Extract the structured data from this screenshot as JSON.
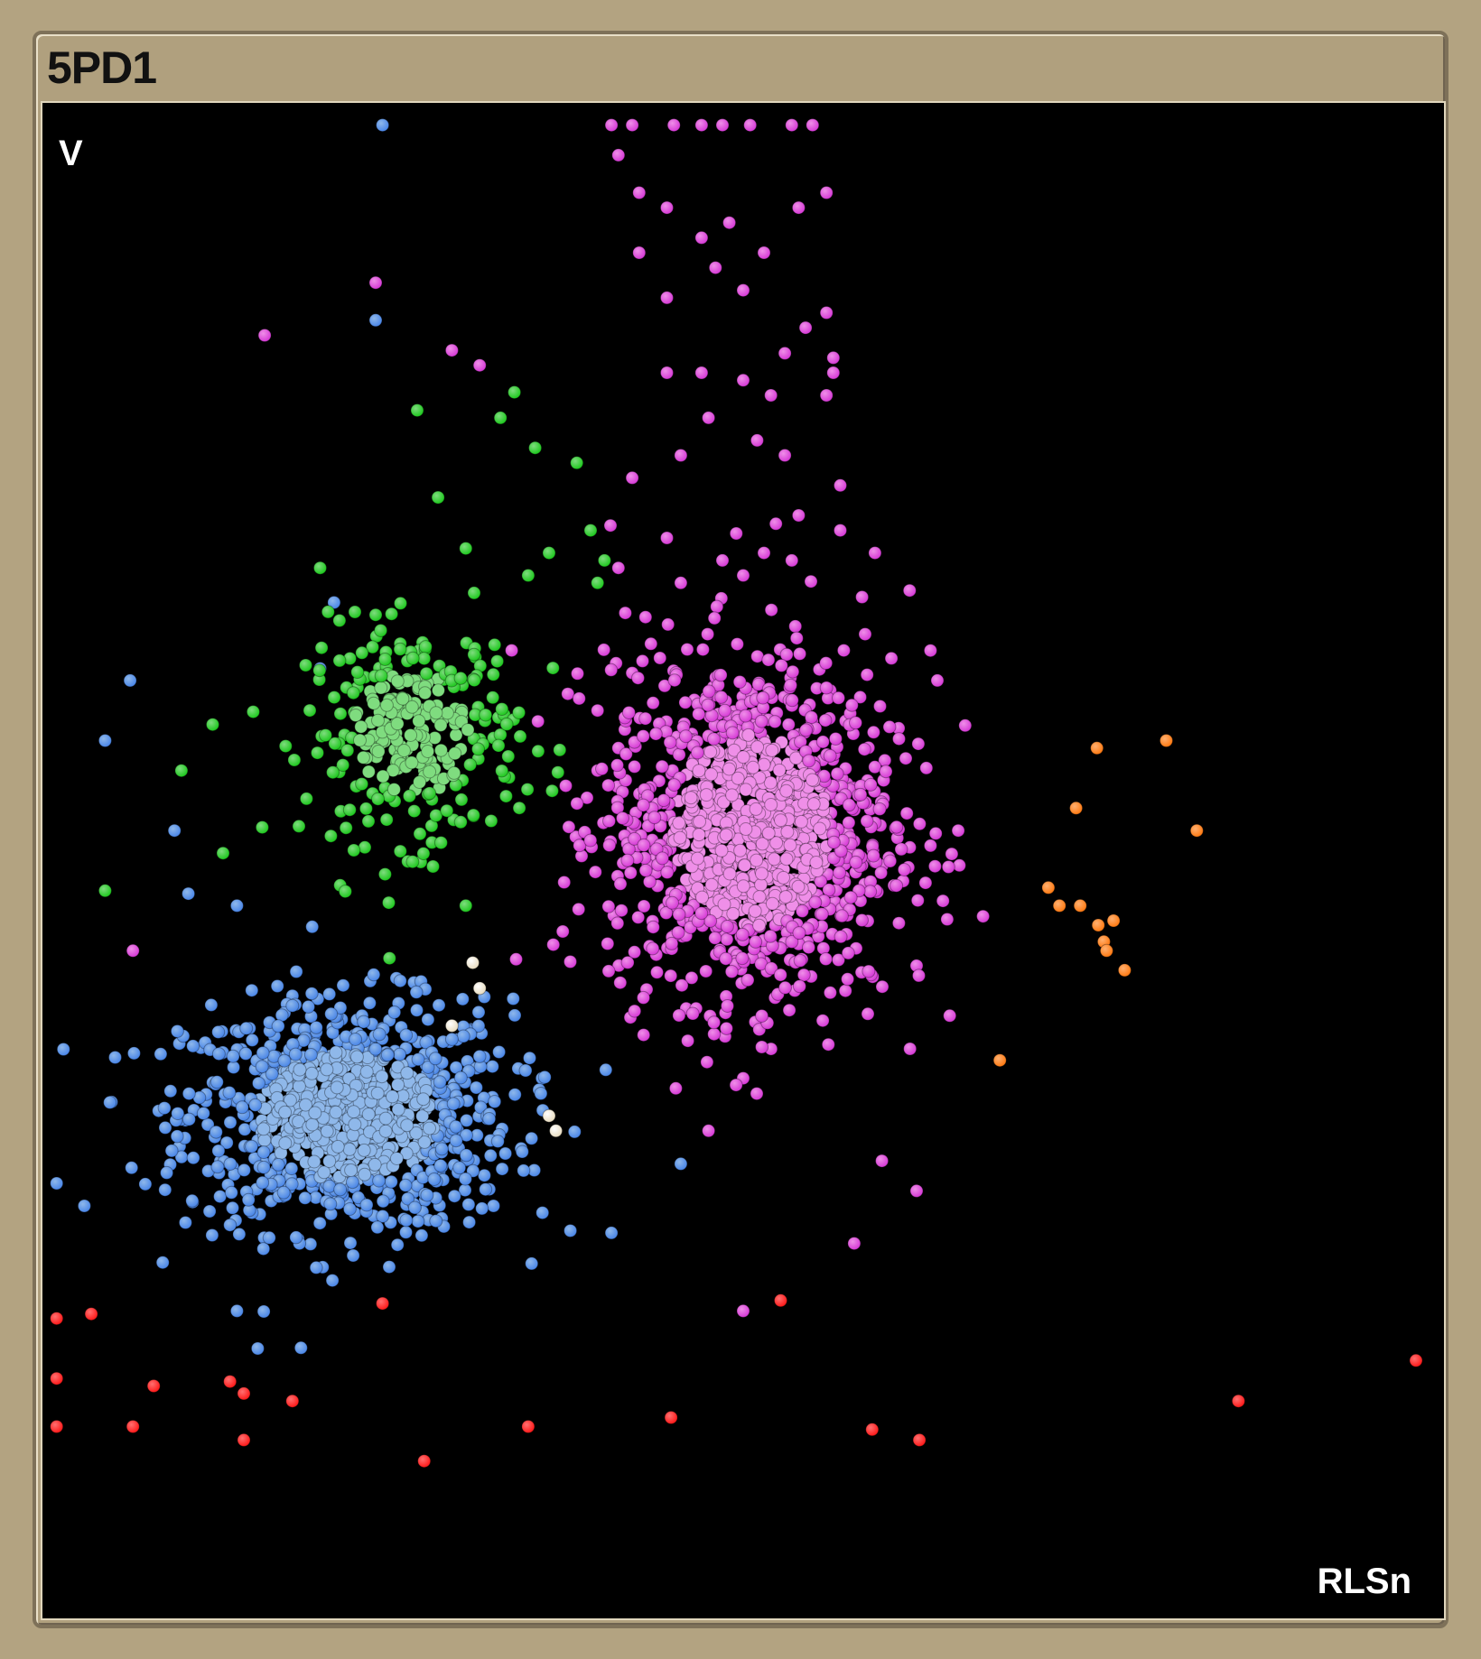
{
  "window": {
    "title": "5PD1"
  },
  "chart_data": {
    "type": "scatter",
    "title": "5PD1",
    "xlabel": "RLSn",
    "ylabel": "V",
    "xlim": [
      0,
      1000
    ],
    "ylim": [
      0,
      1000
    ],
    "grid": false,
    "legend": "none",
    "series": [
      {
        "color": "#4a86e8",
        "highlight": "#8fb8ea",
        "cluster": {
          "cx": 215,
          "cy": 330,
          "sx": 95,
          "sy": 62,
          "n": 950
        },
        "values": [
          [
            240,
            990
          ],
          [
            235,
            860
          ],
          [
            205,
            672
          ],
          [
            195,
            628
          ],
          [
            135,
            470
          ],
          [
            100,
            478
          ],
          [
            58,
            620
          ],
          [
            5,
            285
          ],
          [
            25,
            270
          ],
          [
            135,
            200
          ],
          [
            150,
            175
          ],
          [
            40,
            580
          ],
          [
            90,
            520
          ],
          [
            175,
            410
          ],
          [
            455,
            298
          ],
          [
            405,
            252
          ],
          [
            355,
            355
          ],
          [
            320,
            270
          ]
        ]
      },
      {
        "color": "#1ec81e",
        "highlight": "#7fdc7f",
        "cluster": {
          "cx": 262,
          "cy": 585,
          "sx": 62,
          "sy": 58,
          "n": 300
        },
        "values": [
          [
            265,
            800
          ],
          [
            335,
            812
          ],
          [
            325,
            795
          ],
          [
            350,
            775
          ],
          [
            380,
            765
          ],
          [
            195,
            695
          ],
          [
            95,
            560
          ],
          [
            40,
            480
          ],
          [
            280,
            742
          ],
          [
            300,
            708
          ],
          [
            360,
            705
          ],
          [
            345,
            690
          ],
          [
            395,
            685
          ],
          [
            390,
            720
          ],
          [
            400,
            700
          ],
          [
            125,
            505
          ],
          [
            300,
            470
          ],
          [
            245,
            435
          ]
        ]
      },
      {
        "color": "#d63ad6",
        "highlight": "#ef8fe8",
        "cluster": {
          "cx": 505,
          "cy": 520,
          "sx": 82,
          "sy": 92,
          "n": 1200
        },
        "values": [
          [
            405,
            990
          ],
          [
            420,
            990
          ],
          [
            450,
            990
          ],
          [
            470,
            990
          ],
          [
            485,
            990
          ],
          [
            505,
            990
          ],
          [
            535,
            990
          ],
          [
            550,
            990
          ],
          [
            410,
            970
          ],
          [
            425,
            945
          ],
          [
            445,
            935
          ],
          [
            470,
            915
          ],
          [
            490,
            925
          ],
          [
            515,
            905
          ],
          [
            540,
            935
          ],
          [
            560,
            945
          ],
          [
            425,
            905
          ],
          [
            480,
            895
          ],
          [
            500,
            880
          ],
          [
            445,
            875
          ],
          [
            560,
            865
          ],
          [
            545,
            855
          ],
          [
            530,
            838
          ],
          [
            565,
            825
          ],
          [
            565,
            835
          ],
          [
            445,
            825
          ],
          [
            470,
            825
          ],
          [
            500,
            820
          ],
          [
            520,
            810
          ],
          [
            560,
            810
          ],
          [
            475,
            795
          ],
          [
            510,
            780
          ],
          [
            530,
            770
          ],
          [
            455,
            770
          ],
          [
            420,
            755
          ],
          [
            570,
            750
          ],
          [
            540,
            730
          ],
          [
            570,
            720
          ],
          [
            535,
            700
          ],
          [
            445,
            715
          ],
          [
            495,
            718
          ],
          [
            515,
            705
          ],
          [
            410,
            695
          ],
          [
            415,
            665
          ],
          [
            155,
            850
          ],
          [
            235,
            885
          ],
          [
            290,
            840
          ],
          [
            310,
            830
          ],
          [
            485,
            700
          ],
          [
            500,
            690
          ],
          [
            455,
            685
          ],
          [
            595,
            705
          ],
          [
            620,
            680
          ],
          [
            635,
            640
          ],
          [
            640,
            620
          ],
          [
            660,
            590
          ],
          [
            655,
            520
          ],
          [
            635,
            510
          ],
          [
            625,
            430
          ],
          [
            60,
            440
          ],
          [
            460,
            380
          ],
          [
            500,
            355
          ],
          [
            475,
            320
          ],
          [
            600,
            300
          ],
          [
            625,
            280
          ],
          [
            500,
            200
          ],
          [
            580,
            245
          ],
          [
            420,
            625
          ],
          [
            440,
            635
          ],
          [
            395,
            600
          ],
          [
            410,
            575
          ],
          [
            395,
            560
          ]
        ]
      },
      {
        "color": "#ff7a12",
        "highlight": "#ffb070",
        "values": [
          [
            755,
            575
          ],
          [
            805,
            580
          ],
          [
            740,
            535
          ],
          [
            827,
            520
          ],
          [
            720,
            482
          ],
          [
            728,
            470
          ],
          [
            743,
            470
          ],
          [
            756,
            457
          ],
          [
            767,
            460
          ],
          [
            760,
            446
          ],
          [
            762,
            440
          ],
          [
            775,
            427
          ],
          [
            685,
            367
          ]
        ]
      },
      {
        "color": "#ff1a1a",
        "highlight": "#ff7070",
        "values": [
          [
            5,
            195
          ],
          [
            30,
            198
          ],
          [
            240,
            205
          ],
          [
            527,
            207
          ],
          [
            5,
            155
          ],
          [
            75,
            150
          ],
          [
            130,
            153
          ],
          [
            140,
            145
          ],
          [
            175,
            140
          ],
          [
            5,
            123
          ],
          [
            60,
            123
          ],
          [
            140,
            114
          ],
          [
            270,
            100
          ],
          [
            345,
            123
          ],
          [
            448,
            129
          ],
          [
            593,
            121
          ],
          [
            627,
            114
          ],
          [
            857,
            140
          ],
          [
            985,
            167
          ]
        ]
      },
      {
        "color": "#e8dcc0",
        "highlight": "#ffffff",
        "values": [
          [
            305,
            432
          ],
          [
            310,
            415
          ],
          [
            290,
            390
          ],
          [
            360,
            330
          ],
          [
            365,
            320
          ]
        ]
      }
    ]
  }
}
